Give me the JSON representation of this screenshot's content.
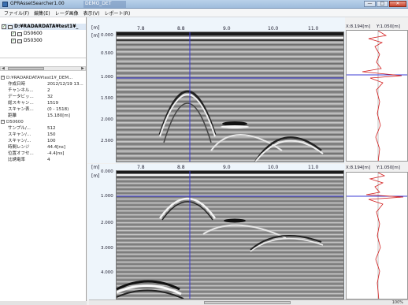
{
  "window": {
    "title": "GPRAssetSearcher1.00",
    "title_extra": "DEMO_DET",
    "minimize": "—",
    "maximize": "□",
    "close": "✕"
  },
  "menu": [
    "ファイル(F)",
    "編集(E)",
    "レーダ画像",
    "表示(V)",
    "レポート(R)"
  ],
  "tree": {
    "root_label": "D:¥RADARDATA¥test1¥_",
    "children": [
      "D50600",
      "D50300"
    ]
  },
  "props": {
    "group1_title": "D:¥RADARDATA¥test1¥_DEM...",
    "group1_rows": [
      {
        "key": "作成日時",
        "value": "2012/12/19 13..."
      },
      {
        "key": "チャンネル...",
        "value": "2"
      },
      {
        "key": "データビッ...",
        "value": "32"
      },
      {
        "key": "総スキャン...",
        "value": "1519"
      },
      {
        "key": "スキャン表...",
        "value": "(0 - 1518)"
      },
      {
        "key": "距離",
        "value": "15.180[m]"
      }
    ],
    "group2_title": "D50600",
    "group2_rows": [
      {
        "key": "サンプル/...",
        "value": "512"
      },
      {
        "key": "スキャン/...",
        "value": "150"
      },
      {
        "key": "スキャン/...",
        "value": "100"
      },
      {
        "key": "時間レンジ",
        "value": "44.4[ns]"
      },
      {
        "key": "位置オフセ...",
        "value": "-4.4[ns]"
      },
      {
        "key": "比誘電率",
        "value": "4"
      }
    ]
  },
  "panel_top": {
    "unit_x": "[m]",
    "unit_y": "[m]",
    "x_ticks": [
      "7.8",
      "8.8",
      "9.0",
      "10.0",
      "11.0"
    ],
    "y_ticks": [
      "0.000",
      "0.500",
      "1.000",
      "1.500",
      "2.000",
      "2.500"
    ],
    "readout_x": "X:8.194[m]",
    "readout_y": "Y:1.050[m]"
  },
  "panel_bottom": {
    "unit_x": "[m]",
    "unit_y": "[m]",
    "x_ticks": [
      "7.8",
      "8.8",
      "9.0",
      "10.0",
      "11.0"
    ],
    "y_ticks": [
      "0.000",
      "1.000",
      "2.000",
      "3.000",
      "4.000"
    ],
    "readout_x": "X:8.194[m]",
    "readout_y": "Y:1.050[m]"
  },
  "scroll": {
    "left_arrow": "◀",
    "right_arrow": "▶",
    "zoom": "100%"
  },
  "colors": {
    "cursor": "#3b3bd6",
    "trace": "#d21e1e",
    "panel_bg": "#eef5fb"
  }
}
